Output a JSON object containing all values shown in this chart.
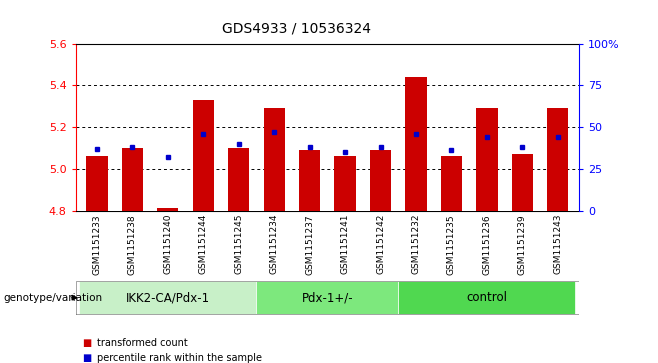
{
  "title": "GDS4933 / 10536324",
  "samples": [
    "GSM1151233",
    "GSM1151238",
    "GSM1151240",
    "GSM1151244",
    "GSM1151245",
    "GSM1151234",
    "GSM1151237",
    "GSM1151241",
    "GSM1151242",
    "GSM1151232",
    "GSM1151235",
    "GSM1151236",
    "GSM1151239",
    "GSM1151243"
  ],
  "red_values": [
    5.06,
    5.1,
    4.81,
    5.33,
    5.1,
    5.29,
    5.09,
    5.06,
    5.09,
    5.44,
    5.06,
    5.29,
    5.07,
    5.29
  ],
  "blue_percentiles": [
    37,
    38,
    32,
    46,
    40,
    47,
    38,
    35,
    38,
    46,
    36,
    44,
    38,
    44
  ],
  "ymin": 4.8,
  "ymax": 5.6,
  "yticks": [
    4.8,
    5.0,
    5.2,
    5.4,
    5.6
  ],
  "right_yticks": [
    0,
    25,
    50,
    75,
    100
  ],
  "right_yticklabels": [
    "0",
    "25",
    "50",
    "75",
    "100%"
  ],
  "groups": [
    {
      "label": "IKK2-CA/Pdx-1",
      "start": 0,
      "end": 5,
      "color": "#c8f0c8"
    },
    {
      "label": "Pdx-1+/-",
      "start": 5,
      "end": 9,
      "color": "#7de87d"
    },
    {
      "label": "control",
      "start": 9,
      "end": 14,
      "color": "#50d850"
    }
  ],
  "bar_color": "#cc0000",
  "dot_color": "#0000cc",
  "sample_bg_color": "#d0d0d0",
  "legend_red": "transformed count",
  "legend_blue": "percentile rank within the sample",
  "genotype_label": "genotype/variation"
}
